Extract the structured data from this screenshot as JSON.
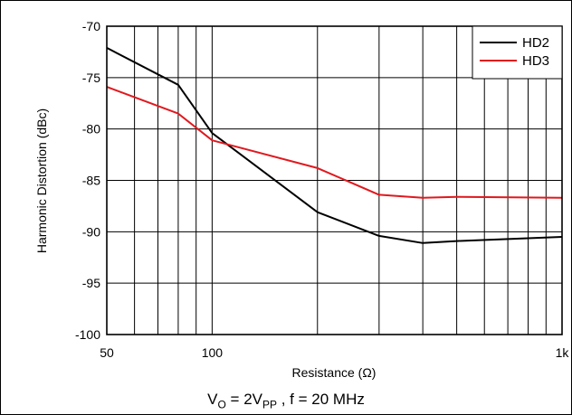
{
  "chart_data": {
    "type": "line",
    "xlabel": "Resistance (Ω)",
    "ylabel": "Harmonic Distortion (dBc)",
    "xscale": "log",
    "xlim": [
      50,
      1000
    ],
    "ylim": [
      -100,
      -70
    ],
    "grid": true,
    "legend_position": "top-right",
    "x_tick_labels": [
      "50",
      "100",
      "1k"
    ],
    "y_tick_labels": [
      "-70",
      "-75",
      "-80",
      "-85",
      "-90",
      "-95",
      "-100"
    ],
    "series": [
      {
        "name": "HD2",
        "color": "#000000",
        "x": [
          50,
          80,
          100,
          200,
          300,
          400,
          500,
          1000
        ],
        "y": [
          -72.1,
          -75.7,
          -80.4,
          -88.1,
          -90.4,
          -91.1,
          -90.9,
          -90.5
        ]
      },
      {
        "name": "HD3",
        "color": "#e0191e",
        "x": [
          50,
          80,
          100,
          200,
          300,
          400,
          500,
          1000
        ],
        "y": [
          -75.9,
          -78.5,
          -81.1,
          -83.8,
          -86.4,
          -86.7,
          -86.6,
          -86.7
        ]
      }
    ]
  },
  "caption": {
    "v": "V",
    "v_sub": "O",
    "eq": " = 2V",
    "vpp_sub": "PP",
    "rest": " , f = 20 MHz"
  }
}
